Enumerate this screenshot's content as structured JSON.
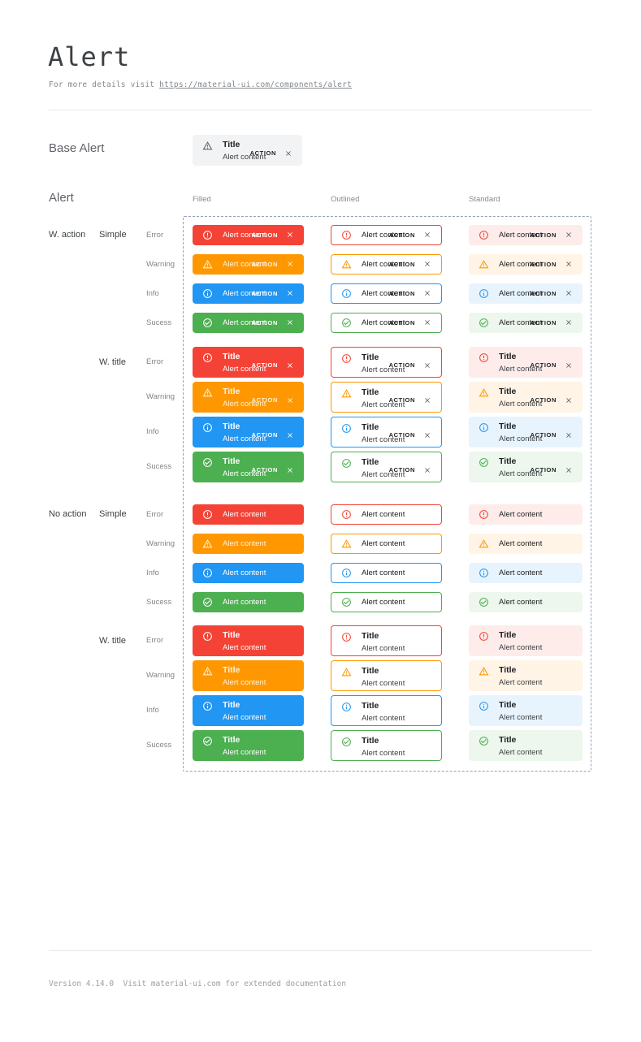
{
  "page": {
    "title": "Alert",
    "subtitle_prefix": "For more details visit ",
    "subtitle_link": "https://material-ui.com/components/alert",
    "footer_text": "Version 4.14.0  Visit material-ui.com for extended documentation"
  },
  "base_section": {
    "label": "Base Alert",
    "alert": {
      "title": "Title",
      "content": "Alert content",
      "action": "ACTION"
    }
  },
  "grid_section": {
    "label": "Alert",
    "columns": [
      {
        "key": "filled",
        "label": "Filled"
      },
      {
        "key": "outlined",
        "label": "Outlined"
      },
      {
        "key": "standard",
        "label": "Standard"
      }
    ],
    "severities": [
      {
        "key": "error",
        "label": "Error",
        "icon": "error-icon"
      },
      {
        "key": "warning",
        "label": "Warning",
        "icon": "warning-icon"
      },
      {
        "key": "info",
        "label": "Info",
        "icon": "info-icon"
      },
      {
        "key": "success",
        "label": "Sucess",
        "icon": "success-icon"
      }
    ],
    "groups": [
      {
        "label": "W. action",
        "has_action": true,
        "subgroups": [
          {
            "label": "Simple",
            "with_title": false
          },
          {
            "label": "W. title",
            "with_title": true
          }
        ]
      },
      {
        "label": "No action",
        "has_action": false,
        "subgroups": [
          {
            "label": "Simple",
            "with_title": false
          },
          {
            "label": "W. title",
            "with_title": true
          }
        ]
      }
    ],
    "alert": {
      "title": "Title",
      "content": "Alert content",
      "action": "ACTION"
    },
    "close_icon": "close-icon"
  },
  "colors": {
    "error": {
      "main": "#f44336",
      "tint": "#fdecea"
    },
    "warning": {
      "main": "#ff9800",
      "tint": "#fff4e5"
    },
    "info": {
      "main": "#2196f3",
      "tint": "#e8f4fd"
    },
    "success": {
      "main": "#4caf50",
      "tint": "#edf7ed"
    },
    "base_bg": "#f2f3f4",
    "base_icon": "#5f6368",
    "dashed_border": "#94a0b4"
  }
}
